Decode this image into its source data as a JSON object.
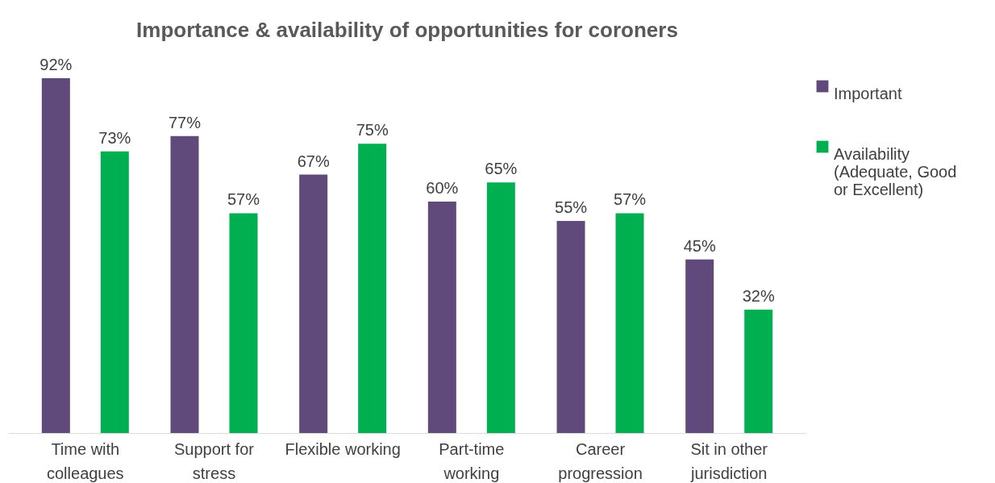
{
  "chart_data": {
    "type": "bar",
    "title": "Importance & availability of opportunities for coroners",
    "categories": [
      "Time with colleagues",
      "Support for stress",
      "Flexible working",
      "Part-time working",
      "Career progression",
      "Sit in other jurisdiction"
    ],
    "series": [
      {
        "name": "Important",
        "color": "#604a7b",
        "values": [
          92,
          77,
          67,
          60,
          55,
          45
        ],
        "value_labels": [
          "92%",
          "77%",
          "67%",
          "60%",
          "55%",
          "45%"
        ]
      },
      {
        "name": "Availability (Adequate, Good or Excellent)",
        "color": "#00b050",
        "values": [
          73,
          57,
          75,
          65,
          57,
          32
        ],
        "value_labels": [
          "73%",
          "57%",
          "75%",
          "65%",
          "57%",
          "32%"
        ]
      }
    ],
    "legend": "right",
    "grid": false
  }
}
